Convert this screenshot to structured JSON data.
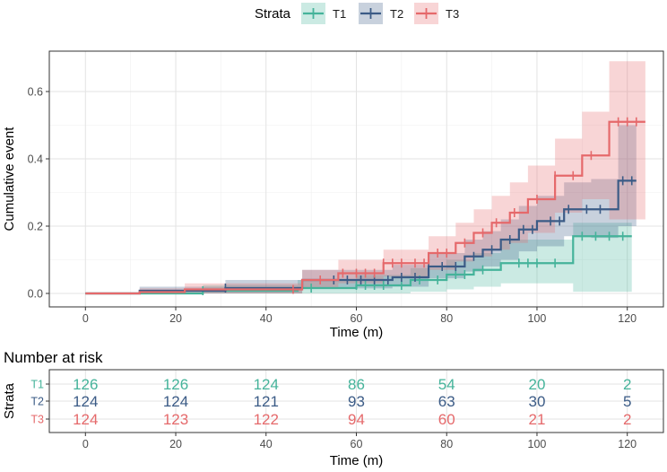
{
  "chart_data": {
    "type": "line",
    "subtype": "cumulative-incidence-step",
    "legend": {
      "title": "Strata",
      "position": "top",
      "entries": [
        "T1",
        "T2",
        "T3"
      ]
    },
    "colors": {
      "T1": "#45b39a",
      "T2": "#3b5b86",
      "T3": "#e5696b"
    },
    "main": {
      "xlabel": "Time (m)",
      "ylabel": "Cumulative event",
      "xlim": [
        -8,
        128
      ],
      "ylim": [
        -0.04,
        0.72
      ],
      "xticks": [
        0,
        20,
        40,
        60,
        80,
        100,
        120
      ],
      "yticks": [
        0.0,
        0.2,
        0.4,
        0.6
      ],
      "ytick_labels": [
        "0.0",
        "0.2",
        "0.4",
        "0.6"
      ],
      "grid": true,
      "series": [
        {
          "name": "T1",
          "steps": [
            [
              0,
              0
            ],
            [
              26,
              0.008
            ],
            [
              47,
              0.016
            ],
            [
              60,
              0.024
            ],
            [
              72,
              0.04
            ],
            [
              80,
              0.056
            ],
            [
              86,
              0.07
            ],
            [
              92,
              0.09
            ],
            [
              108,
              0.17
            ],
            [
              121,
              0.17
            ]
          ],
          "upper": [
            [
              0,
              0
            ],
            [
              26,
              0.025
            ],
            [
              47,
              0.04
            ],
            [
              60,
              0.055
            ],
            [
              72,
              0.075
            ],
            [
              80,
              0.1
            ],
            [
              86,
              0.12
            ],
            [
              92,
              0.16
            ],
            [
              108,
              0.21
            ],
            [
              121,
              0.21
            ]
          ],
          "lower": [
            [
              0,
              0
            ],
            [
              26,
              0
            ],
            [
              47,
              0
            ],
            [
              60,
              0
            ],
            [
              72,
              0.005
            ],
            [
              80,
              0.012
            ],
            [
              86,
              0.02
            ],
            [
              92,
              0.03
            ],
            [
              108,
              0.005
            ],
            [
              121,
              0.005
            ]
          ],
          "censored": [
            26,
            50,
            60,
            62,
            64,
            66,
            70,
            74,
            78,
            82,
            84,
            88,
            96,
            98,
            100,
            104,
            110,
            113,
            116,
            119
          ]
        },
        {
          "name": "T2",
          "steps": [
            [
              0,
              0
            ],
            [
              12,
              0.008
            ],
            [
              31,
              0.016
            ],
            [
              48,
              0.04
            ],
            [
              68,
              0.048
            ],
            [
              76,
              0.08
            ],
            [
              84,
              0.11
            ],
            [
              88,
              0.13
            ],
            [
              92,
              0.16
            ],
            [
              96,
              0.19
            ],
            [
              100,
              0.215
            ],
            [
              106,
              0.25
            ],
            [
              112,
              0.25
            ],
            [
              118,
              0.335
            ],
            [
              122,
              0.335
            ]
          ],
          "upper": [
            [
              0,
              0
            ],
            [
              12,
              0.02
            ],
            [
              31,
              0.04
            ],
            [
              48,
              0.07
            ],
            [
              68,
              0.085
            ],
            [
              76,
              0.12
            ],
            [
              84,
              0.16
            ],
            [
              88,
              0.185
            ],
            [
              92,
              0.22
            ],
            [
              96,
              0.26
            ],
            [
              100,
              0.29
            ],
            [
              106,
              0.33
            ],
            [
              112,
              0.34
            ],
            [
              118,
              0.5
            ],
            [
              122,
              0.5
            ]
          ],
          "lower": [
            [
              0,
              0
            ],
            [
              12,
              0
            ],
            [
              31,
              0
            ],
            [
              48,
              0.015
            ],
            [
              68,
              0.02
            ],
            [
              76,
              0.045
            ],
            [
              84,
              0.065
            ],
            [
              88,
              0.08
            ],
            [
              92,
              0.1
            ],
            [
              96,
              0.125
            ],
            [
              100,
              0.14
            ],
            [
              106,
              0.17
            ],
            [
              112,
              0.165
            ],
            [
              118,
              0.2
            ],
            [
              122,
              0.2
            ]
          ],
          "censored": [
            31,
            55,
            58,
            61,
            64,
            67,
            70,
            73,
            76,
            79,
            82,
            86,
            90,
            94,
            97,
            99,
            103,
            105,
            107,
            111,
            114,
            119,
            121
          ]
        },
        {
          "name": "T3",
          "steps": [
            [
              0,
              0
            ],
            [
              12,
              0.004
            ],
            [
              22,
              0.012
            ],
            [
              48,
              0.04
            ],
            [
              56,
              0.06
            ],
            [
              66,
              0.09
            ],
            [
              76,
              0.12
            ],
            [
              82,
              0.15
            ],
            [
              86,
              0.18
            ],
            [
              90,
              0.21
            ],
            [
              94,
              0.24
            ],
            [
              98,
              0.28
            ],
            [
              104,
              0.35
            ],
            [
              110,
              0.41
            ],
            [
              116,
              0.51
            ],
            [
              124,
              0.51
            ]
          ],
          "upper": [
            [
              0,
              0
            ],
            [
              12,
              0.015
            ],
            [
              22,
              0.03
            ],
            [
              48,
              0.07
            ],
            [
              56,
              0.1
            ],
            [
              66,
              0.13
            ],
            [
              76,
              0.17
            ],
            [
              82,
              0.21
            ],
            [
              86,
              0.25
            ],
            [
              90,
              0.29
            ],
            [
              94,
              0.33
            ],
            [
              98,
              0.38
            ],
            [
              104,
              0.46
            ],
            [
              110,
              0.54
            ],
            [
              116,
              0.69
            ],
            [
              124,
              0.69
            ]
          ],
          "lower": [
            [
              0,
              0
            ],
            [
              12,
              0
            ],
            [
              22,
              0
            ],
            [
              48,
              0.015
            ],
            [
              56,
              0.03
            ],
            [
              66,
              0.05
            ],
            [
              76,
              0.07
            ],
            [
              82,
              0.095
            ],
            [
              86,
              0.11
            ],
            [
              90,
              0.13
            ],
            [
              94,
              0.15
            ],
            [
              98,
              0.18
            ],
            [
              104,
              0.24
            ],
            [
              110,
              0.28
            ],
            [
              116,
              0.22
            ],
            [
              124,
              0.22
            ]
          ],
          "censored": [
            46,
            52,
            57,
            60,
            62,
            64,
            66,
            68,
            70,
            73,
            75,
            78,
            80,
            84,
            88,
            91,
            95,
            100,
            104,
            108,
            112,
            118,
            120,
            122
          ]
        }
      ]
    },
    "risk_table": {
      "title": "Number at risk",
      "xlabel": "Time (m)",
      "ylabel": "Strata",
      "times": [
        0,
        20,
        40,
        60,
        80,
        100,
        120
      ],
      "rows": [
        {
          "strata": "T1",
          "counts": [
            126,
            126,
            124,
            86,
            54,
            20,
            2
          ]
        },
        {
          "strata": "T2",
          "counts": [
            124,
            124,
            121,
            93,
            63,
            30,
            5
          ]
        },
        {
          "strata": "T3",
          "counts": [
            124,
            123,
            122,
            94,
            60,
            21,
            2
          ]
        }
      ]
    }
  }
}
